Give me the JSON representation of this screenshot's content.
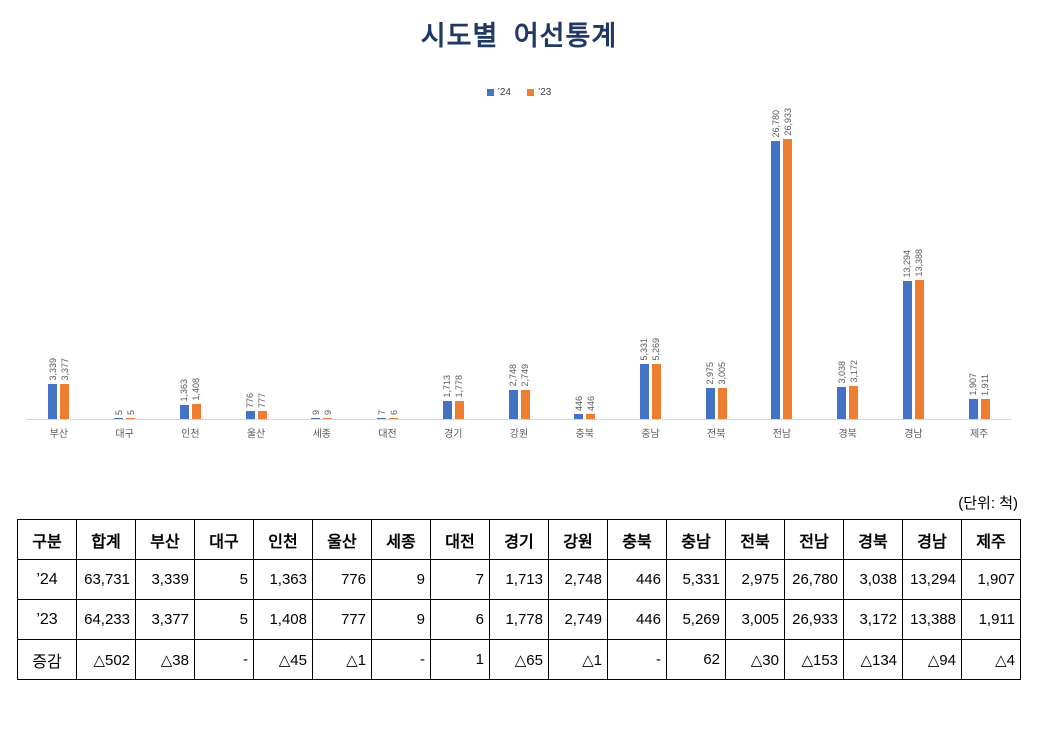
{
  "title": "시도별  어선통계",
  "unit_note": "(단위: 척)",
  "colors": {
    "series_24": "#4472C4",
    "series_23": "#ED7D31",
    "axis_line": "#D6D6D6",
    "label_gray": "#595959",
    "title_navy": "#1F3864"
  },
  "legend": [
    {
      "label": "’24",
      "color": "#4472C4"
    },
    {
      "label": "’23",
      "color": "#ED7D31"
    }
  ],
  "chart_data": {
    "type": "bar",
    "title": "시도별 어선통계",
    "categories": [
      "부산",
      "대구",
      "인천",
      "울산",
      "세종",
      "대전",
      "경기",
      "강원",
      "충북",
      "충남",
      "전북",
      "전남",
      "경북",
      "경남",
      "제주"
    ],
    "series": [
      {
        "name": "’24",
        "color": "#4472C4",
        "values": [
          3339,
          5,
          1363,
          776,
          9,
          7,
          1713,
          2748,
          446,
          5331,
          2975,
          26780,
          3038,
          13294,
          1907
        ]
      },
      {
        "name": "’23",
        "color": "#ED7D31",
        "values": [
          3377,
          5,
          1408,
          777,
          9,
          6,
          1778,
          2749,
          446,
          5269,
          3005,
          26933,
          3172,
          13388,
          1911
        ]
      }
    ],
    "xlabel": "",
    "ylabel": "",
    "ylim": [
      0,
      27000
    ],
    "grid": false,
    "legend_position": "top",
    "data_labels": true,
    "data_label_rotation": "vertical"
  },
  "table": {
    "headers": [
      "구분",
      "합계",
      "부산",
      "대구",
      "인천",
      "울산",
      "세종",
      "대전",
      "경기",
      "강원",
      "충북",
      "충남",
      "전북",
      "전남",
      "경북",
      "경남",
      "제주"
    ],
    "rows": [
      {
        "label": "’24",
        "values": [
          "63,731",
          "3,339",
          "5",
          "1,363",
          "776",
          "9",
          "7",
          "1,713",
          "2,748",
          "446",
          "5,331",
          "2,975",
          "26,780",
          "3,038",
          "13,294",
          "1,907"
        ]
      },
      {
        "label": "’23",
        "values": [
          "64,233",
          "3,377",
          "5",
          "1,408",
          "777",
          "9",
          "6",
          "1,778",
          "2,749",
          "446",
          "5,269",
          "3,005",
          "26,933",
          "3,172",
          "13,388",
          "1,911"
        ]
      },
      {
        "label": "증감",
        "values": [
          "△502",
          "△38",
          "-",
          "△45",
          "△1",
          "-",
          "1",
          "△65",
          "△1",
          "-",
          "62",
          "△30",
          "△153",
          "△134",
          "△94",
          "△4"
        ]
      }
    ]
  }
}
